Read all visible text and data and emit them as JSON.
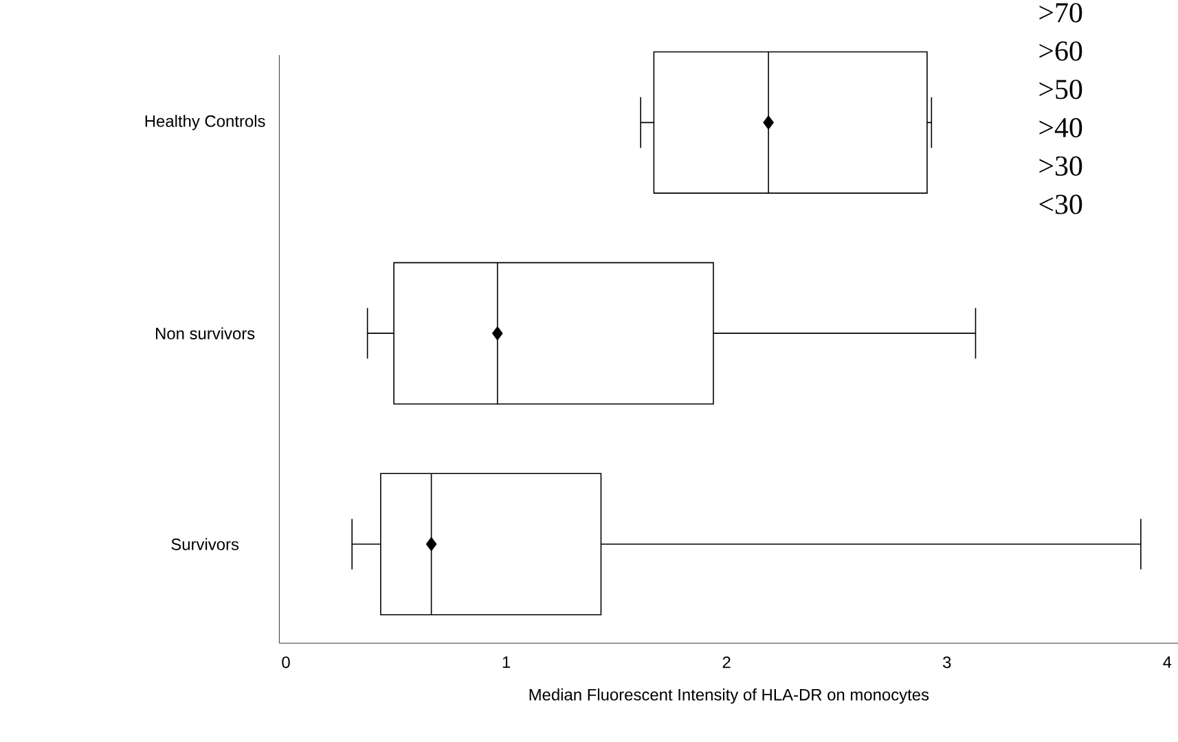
{
  "chart_data": {
    "type": "box",
    "orientation": "horizontal",
    "categories": [
      "Healthy Controls",
      "Non survivors",
      "Survivors"
    ],
    "boxes": [
      {
        "low": 1.61,
        "q1": 1.67,
        "median": 2.19,
        "q3": 2.91,
        "high": 2.93,
        "mean": 2.19
      },
      {
        "low": 0.37,
        "q1": 0.49,
        "median": 0.96,
        "q3": 1.94,
        "high": 3.13,
        "mean": 0.96
      },
      {
        "low": 0.3,
        "q1": 0.43,
        "median": 0.66,
        "q3": 1.43,
        "high": 3.88,
        "mean": 0.66
      }
    ],
    "color": "#000000",
    "marker": "diamond",
    "xlabel": "Median Fluorescent Intensity of HLA-DR on monocytes",
    "xlim": [
      -0.03,
      4.05
    ],
    "xticks": [
      0,
      1,
      2,
      3,
      4
    ],
    "grid": false,
    "legend": false,
    "annotations": [
      ">70",
      ">60",
      ">50",
      ">40",
      ">30",
      "<30"
    ]
  }
}
